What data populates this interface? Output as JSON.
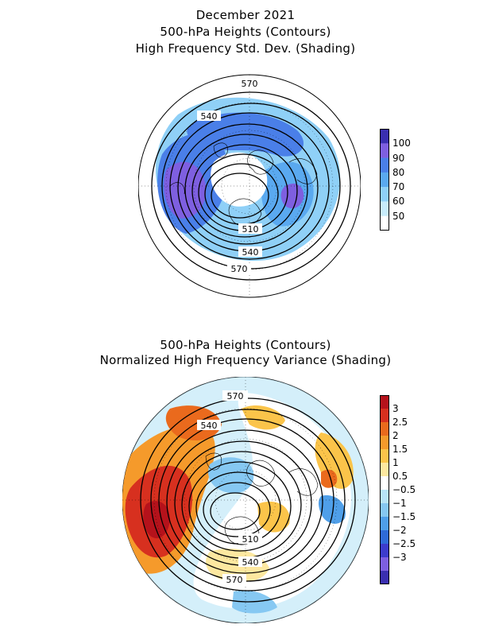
{
  "top_panel": {
    "title_lines": [
      "December 2021",
      "500-hPa Heights (Contours)",
      "High Frequency Std. Dev. (Shading)"
    ],
    "contour_labels": [
      "570",
      "540",
      "510",
      "540",
      "570"
    ],
    "colorbar": {
      "labels": [
        "100",
        "90",
        "80",
        "70",
        "60",
        "50"
      ],
      "colors": [
        "#3a2fb0",
        "#7e5fe0",
        "#4a7fe8",
        "#5aa9f0",
        "#8fd0f7",
        "#c8ecfb",
        "#ffffff"
      ]
    }
  },
  "bottom_panel": {
    "title_lines": [
      "500-hPa Heights (Contours)",
      "Normalized High Frequency Variance (Shading)"
    ],
    "contour_labels": [
      "570",
      "540",
      "510",
      "540",
      "570"
    ],
    "colorbar": {
      "labels": [
        "3",
        "2.5",
        "2",
        "1.5",
        "1",
        "0.5",
        "−0.5",
        "−1",
        "−1.5",
        "−2",
        "−2.5",
        "−3"
      ],
      "colors": [
        "#b5121b",
        "#d7301f",
        "#ea6a1d",
        "#f59a2b",
        "#fbc44a",
        "#fde8a0",
        "#ffffff",
        "#b8e4f7",
        "#86c8f2",
        "#4f9fe9",
        "#2f6bd8",
        "#3c3ccc",
        "#7d5fe0",
        "#3a2fb0"
      ]
    }
  },
  "colors": {
    "contour": "#000000",
    "land_outline": "#000000",
    "background": "#ffffff"
  }
}
